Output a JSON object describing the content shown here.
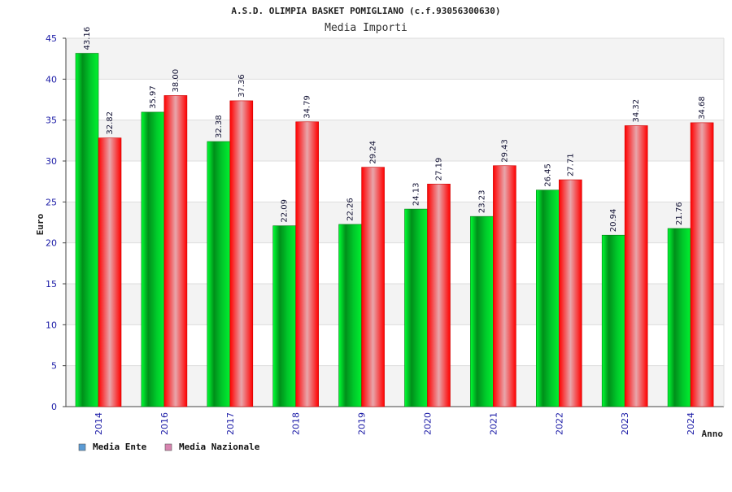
{
  "chart_data": {
    "type": "bar",
    "title": "A.S.D. OLIMPIA BASKET POMIGLIANO (c.f.93056300630)",
    "subtitle": "Media Importi",
    "xlabel": "Anno",
    "ylabel": "Euro",
    "ylim": [
      0,
      45
    ],
    "yticks": [
      0,
      5,
      10,
      15,
      20,
      25,
      30,
      35,
      40,
      45
    ],
    "grid": true,
    "legend_position": "bottom-left",
    "categories": [
      "2014",
      "2016",
      "2017",
      "2018",
      "2019",
      "2020",
      "2021",
      "2022",
      "2023",
      "2024"
    ],
    "series": [
      {
        "name": "Media Ente",
        "color": "#00c000",
        "legend_color": "#5b9bd5",
        "values": [
          43.16,
          35.97,
          32.38,
          22.09,
          22.26,
          24.13,
          23.23,
          26.45,
          20.94,
          21.76
        ],
        "labels": [
          "43.16",
          "35.97",
          "32.38",
          "22.09",
          "22.26",
          "24.13",
          "23.23",
          "26.45",
          "20.94",
          "21.76"
        ]
      },
      {
        "name": "Media Nazionale",
        "color": "#ff1a1a",
        "legend_color": "#d884b0",
        "values": [
          32.82,
          38.0,
          37.36,
          34.79,
          29.24,
          27.19,
          29.43,
          27.71,
          34.32,
          34.68
        ],
        "labels": [
          "32.82",
          "38.00",
          "37.36",
          "34.79",
          "29.24",
          "27.19",
          "29.43",
          "27.71",
          "34.32",
          "34.68"
        ]
      }
    ]
  }
}
